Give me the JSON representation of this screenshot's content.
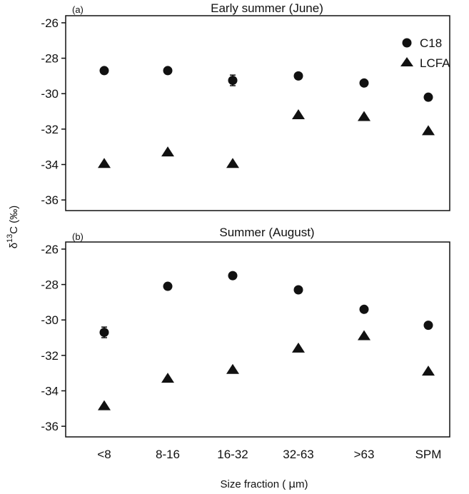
{
  "chart_data": [
    {
      "type": "scatter",
      "panel_label": "(a)",
      "title": "Early summer (June)",
      "categories": [
        "<8",
        "8-16",
        "16-32",
        "32-63",
        ">63",
        "SPM"
      ],
      "ylim": [
        -36.6,
        -25.6
      ],
      "yticks": [
        -26,
        -28,
        -30,
        -32,
        -34,
        -36
      ],
      "series": [
        {
          "name": "C18",
          "marker": "circle",
          "values": [
            -28.7,
            -28.7,
            -29.25,
            -29.0,
            -29.4,
            -30.2
          ],
          "errors": [
            0.1,
            0.1,
            0.3,
            0.1,
            0.1,
            0.1
          ]
        },
        {
          "name": "LCFA",
          "marker": "triangle",
          "values": [
            -33.95,
            -33.3,
            -33.95,
            -31.2,
            -31.3,
            -32.1
          ],
          "errors": [
            0.1,
            0.1,
            0.1,
            0.1,
            0.1,
            0.1
          ]
        }
      ],
      "legend_position": "top-right"
    },
    {
      "type": "scatter",
      "panel_label": "(b)",
      "title": "Summer (August)",
      "categories": [
        "<8",
        "8-16",
        "16-32",
        "32-63",
        ">63",
        "SPM"
      ],
      "ylim": [
        -36.6,
        -25.6
      ],
      "yticks": [
        -26,
        -28,
        -30,
        -32,
        -34,
        -36
      ],
      "series": [
        {
          "name": "C18",
          "marker": "circle",
          "values": [
            -30.7,
            -28.1,
            -27.5,
            -28.3,
            -29.4,
            -30.3
          ],
          "errors": [
            0.3,
            0.1,
            0.1,
            0.1,
            0.1,
            0.1
          ]
        },
        {
          "name": "LCFA",
          "marker": "triangle",
          "values": [
            -34.85,
            -33.3,
            -32.8,
            -31.6,
            -30.9,
            -32.9
          ],
          "errors": [
            0.1,
            0.1,
            0.1,
            0.1,
            0.1,
            0.1
          ]
        }
      ]
    }
  ],
  "ylabel": "δ13C (‰)",
  "ylabel_parts": {
    "delta": "δ",
    "superscript": "13",
    "rest": "C (‰)"
  },
  "xlabel_parts": {
    "prefix": "Size fraction ( ",
    "mu": "μ",
    "unit": "m)"
  }
}
